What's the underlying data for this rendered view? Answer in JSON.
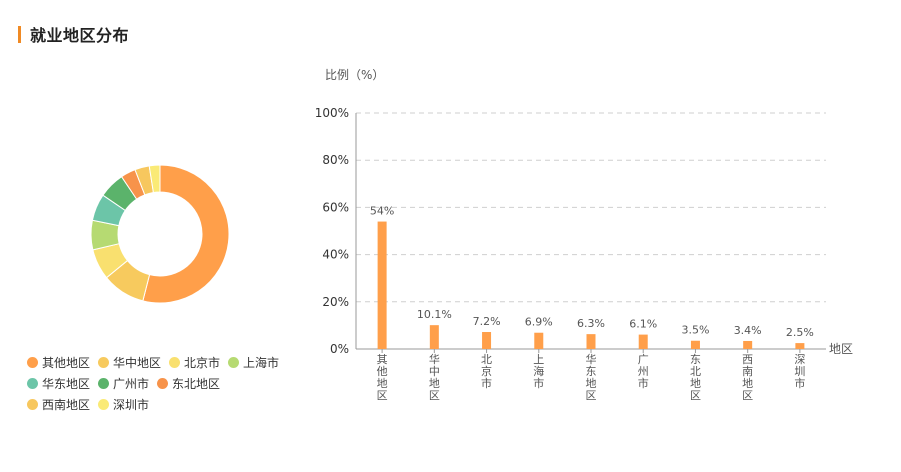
{
  "header": {
    "title": "就业地区分布"
  },
  "chart_data": [
    {
      "type": "pie",
      "style": "donut",
      "categories": [
        "其他地区",
        "华中地区",
        "北京市",
        "上海市",
        "华东地区",
        "广州市",
        "东北地区",
        "西南地区",
        "深圳市"
      ],
      "values": [
        54,
        10.1,
        7.2,
        6.9,
        6.3,
        6.1,
        3.5,
        3.4,
        2.5
      ],
      "colors": [
        "#ff9f4a",
        "#f7ca5e",
        "#f9e06f",
        "#b6da72",
        "#6cc5a8",
        "#5bb36b",
        "#f7934a",
        "#f7c75e",
        "#faea76"
      ],
      "legend": "bottom"
    },
    {
      "type": "bar",
      "categories": [
        "其他地区",
        "华中地区",
        "北京市",
        "上海市",
        "华东地区",
        "广州市",
        "东北地区",
        "西南地区",
        "深圳市"
      ],
      "values": [
        54,
        10.1,
        7.2,
        6.9,
        6.3,
        6.1,
        3.5,
        3.4,
        2.5
      ],
      "data_labels": [
        "54%",
        "10.1%",
        "7.2%",
        "6.9%",
        "6.3%",
        "6.1%",
        "3.5%",
        "3.4%",
        "2.5%"
      ],
      "ylabel": "比例（%）",
      "xlabel": "地区",
      "ylim": [
        0,
        100
      ],
      "yticks": [
        "0%",
        "20%",
        "40%",
        "60%",
        "80%",
        "100%"
      ],
      "bar_color": "#ff9f4a",
      "grid": true
    }
  ]
}
